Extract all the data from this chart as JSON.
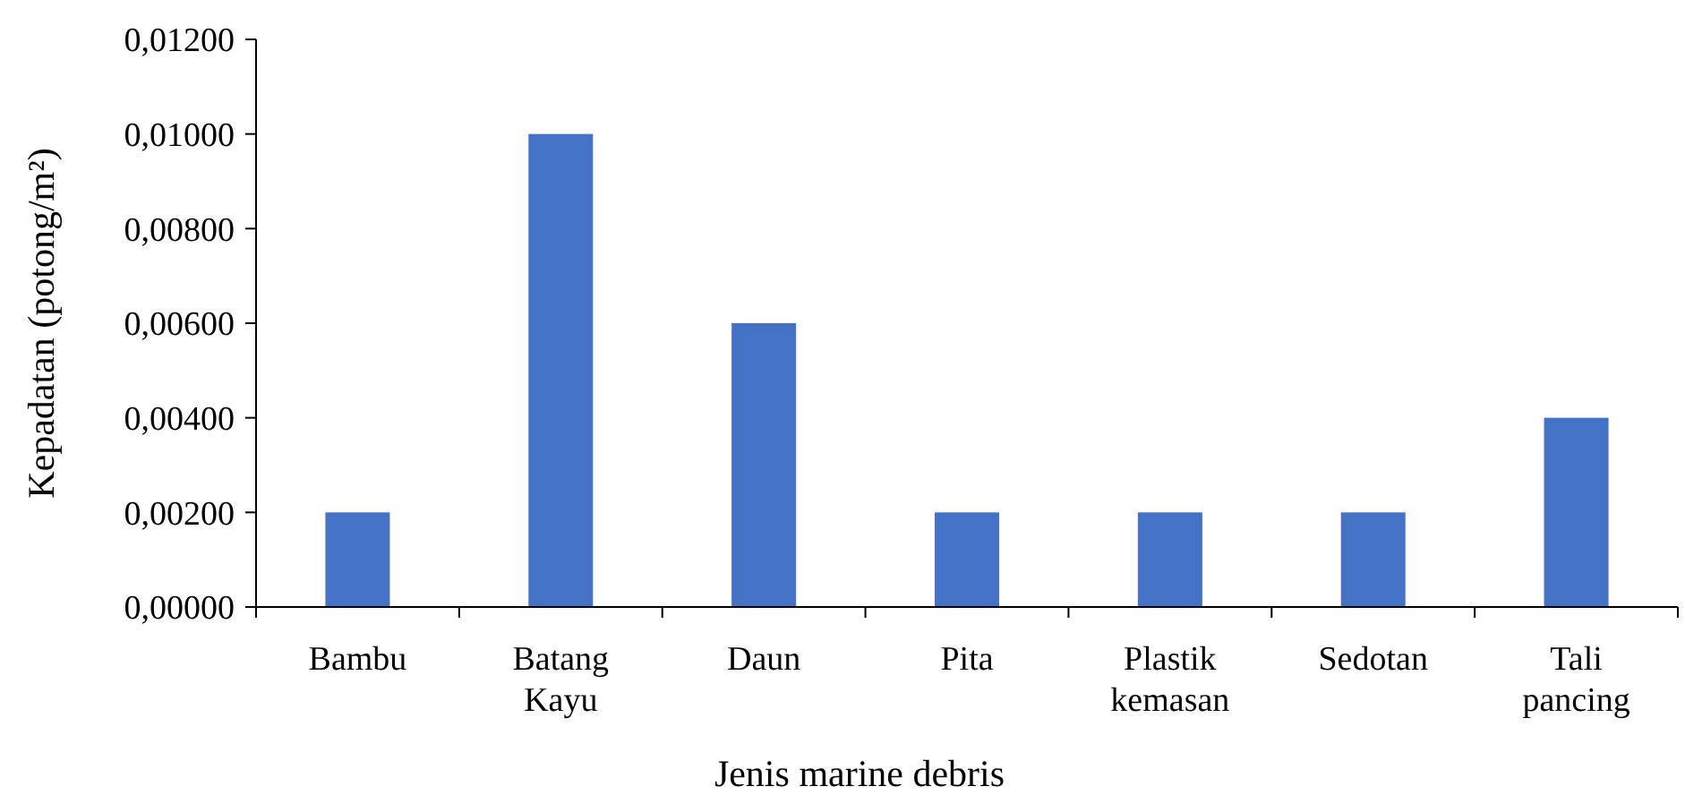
{
  "chart_data": {
    "type": "bar",
    "xlabel": "Jenis marine debris",
    "ylabel": "Kepadatan (potong/m²)",
    "categories": [
      "Bambu",
      "Batang Kayu",
      "Daun",
      "Pita",
      "Plastik kemasan",
      "Sedotan",
      "Tali pancing"
    ],
    "values": [
      0.002,
      0.01,
      0.006,
      0.002,
      0.002,
      0.002,
      0.004
    ],
    "color": "#4472c4",
    "ylim": [
      0,
      0.012
    ],
    "yticks": [
      {
        "value": 0,
        "label": "0,00000"
      },
      {
        "value": 0.002,
        "label": "0,00200"
      },
      {
        "value": 0.004,
        "label": "0,00400"
      },
      {
        "value": 0.006,
        "label": "0,00600"
      },
      {
        "value": 0.008,
        "label": "0,00800"
      },
      {
        "value": 0.01,
        "label": "0,01000"
      },
      {
        "value": 0.012,
        "label": "0,01200"
      }
    ],
    "grid": false
  }
}
